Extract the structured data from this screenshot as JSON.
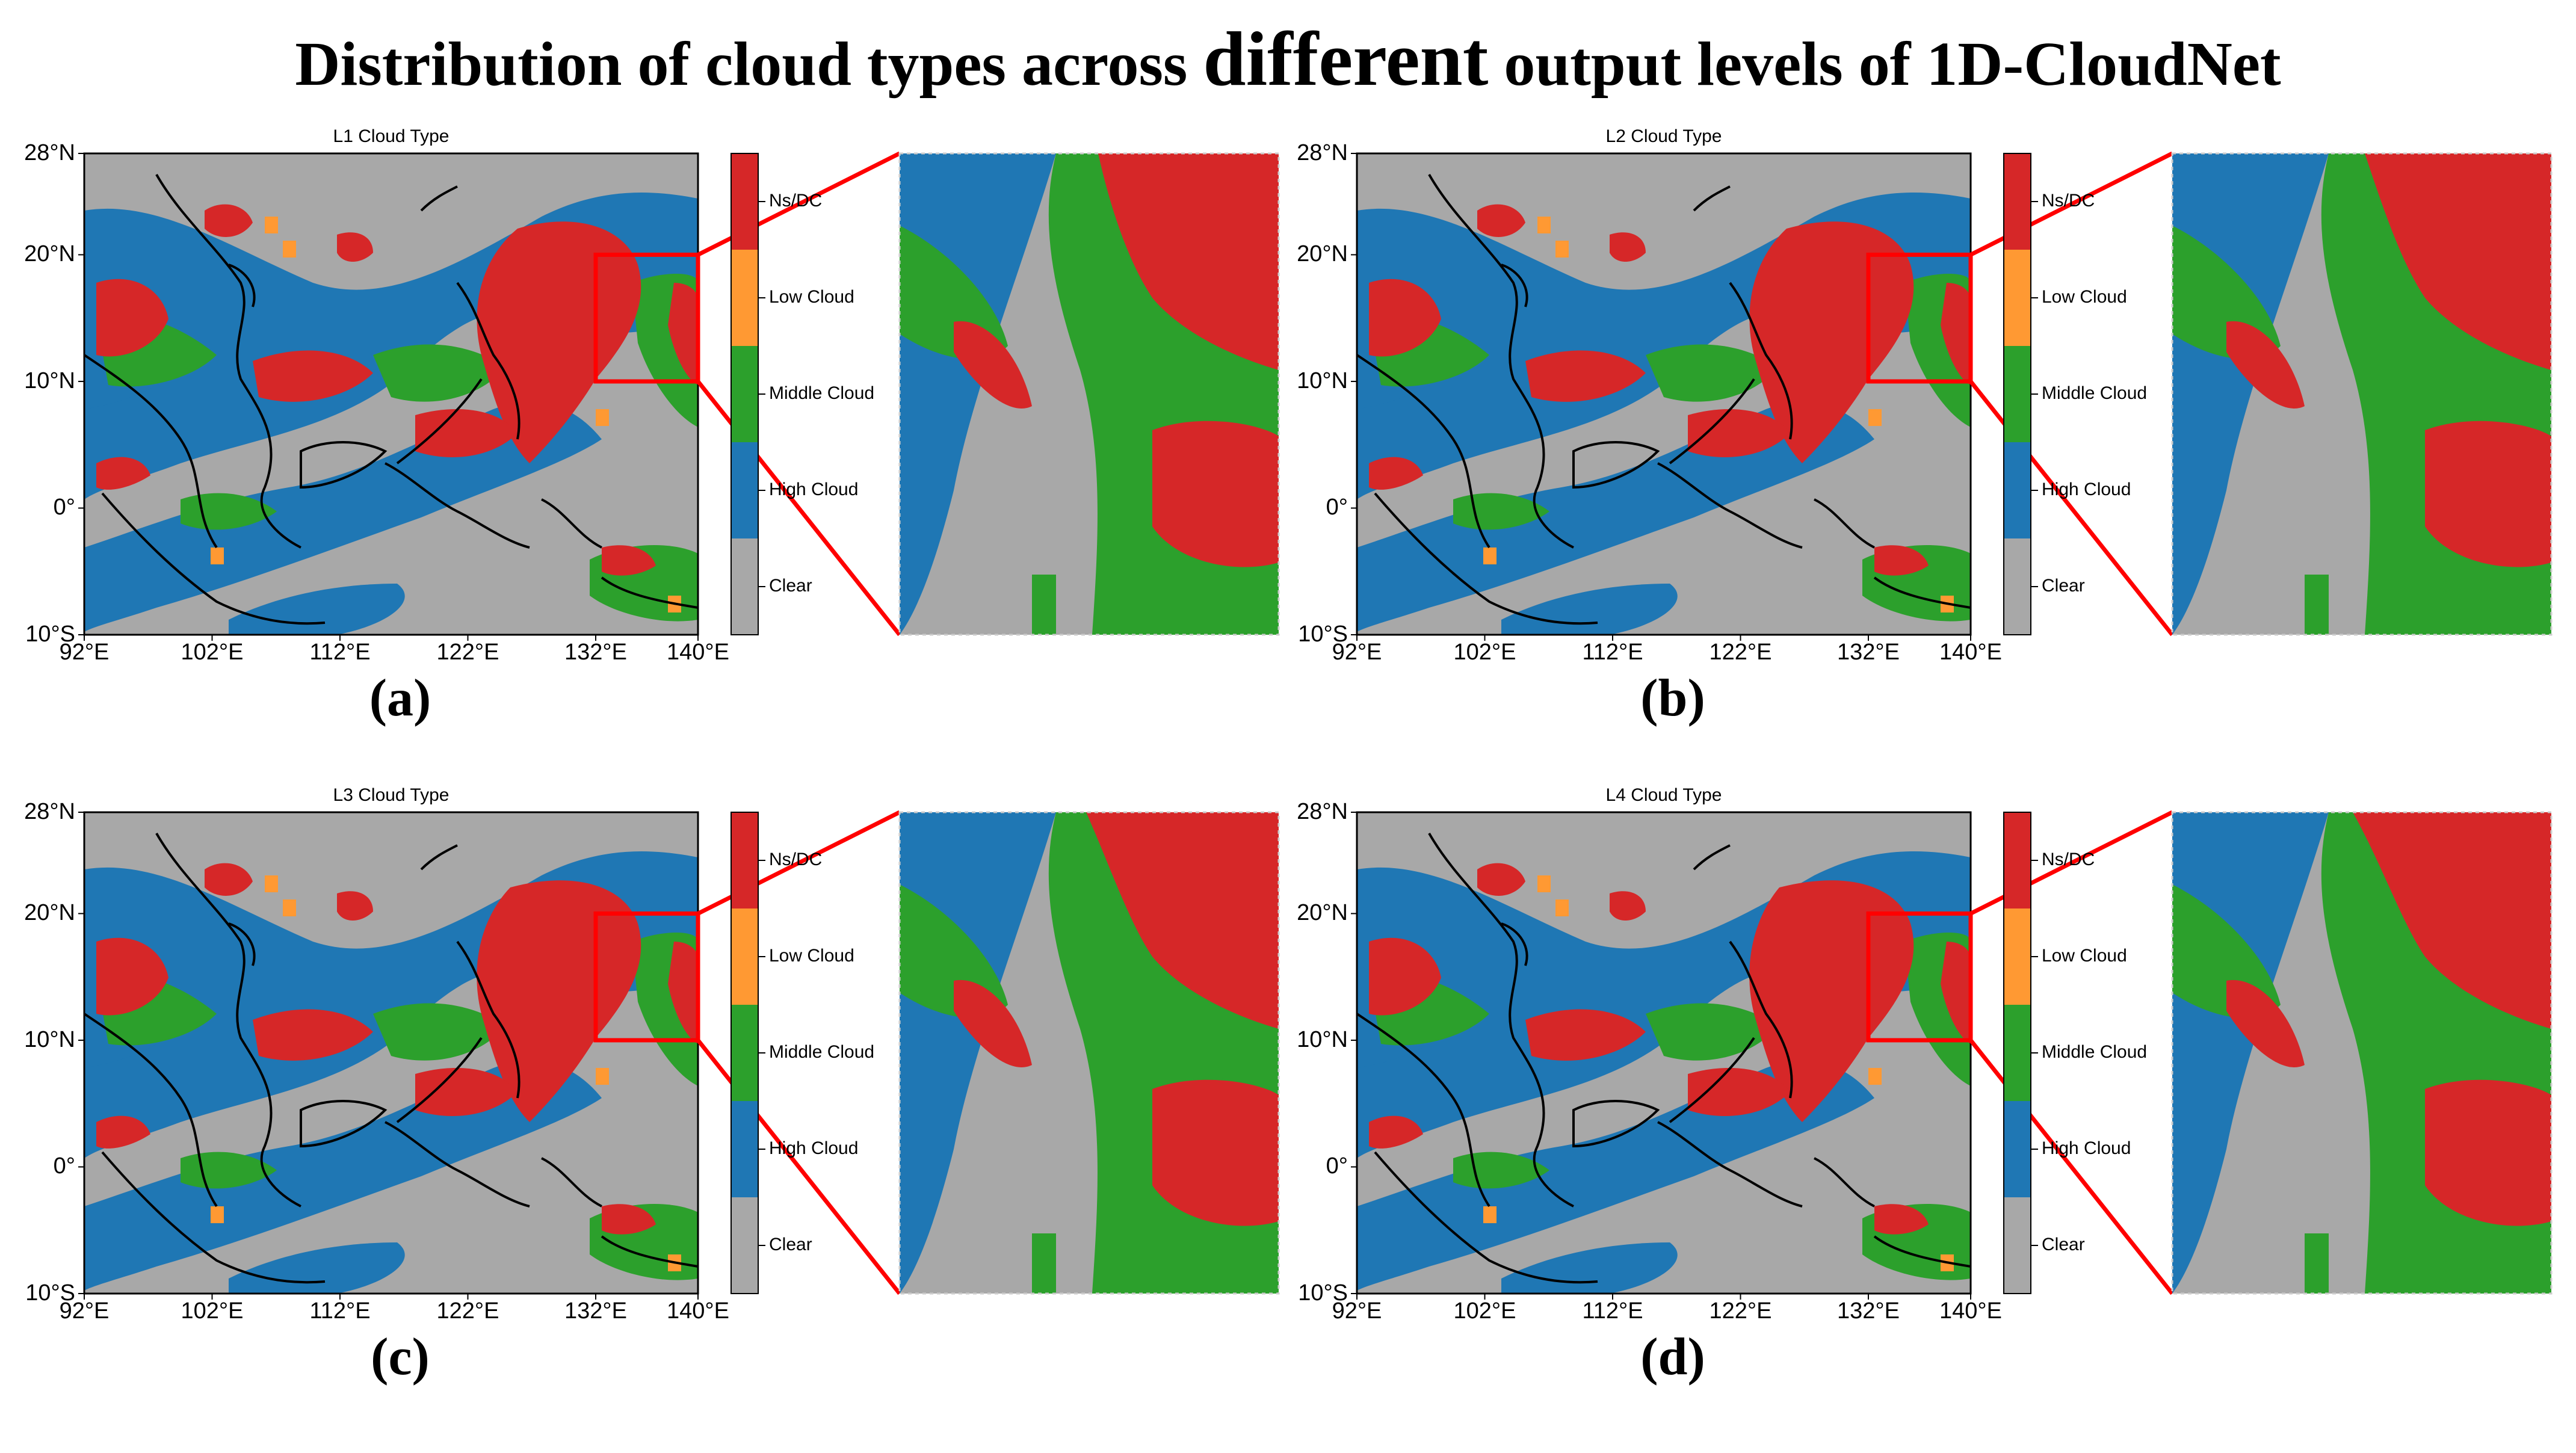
{
  "title_part1": "Distribution of cloud types across ",
  "title_part2": "different",
  "title_part3": " output levels of 1D-CloudNet",
  "lat_ticks": [
    "28°N",
    "20°N",
    "10°N",
    "0°",
    "10°S"
  ],
  "lon_ticks": [
    "92°E",
    "102°E",
    "112°E",
    "122°E",
    "132°E",
    "140°E"
  ],
  "classes": [
    {
      "label": "Ns/DC",
      "color": "#d62728"
    },
    {
      "label": "Low Cloud",
      "color": "#ff9933"
    },
    {
      "label": "Middle Cloud",
      "color": "#2ca02c"
    },
    {
      "label": "High Cloud",
      "color": "#1f77b4"
    },
    {
      "label": "Clear",
      "color": "#a8a8a8"
    }
  ],
  "panels": [
    {
      "name": "L1 Cloud Type",
      "letter": "(a)"
    },
    {
      "name": "L2 Cloud Type",
      "letter": "(b)"
    },
    {
      "name": "L3 Cloud Type",
      "letter": "(c)"
    },
    {
      "name": "L4 Cloud Type",
      "letter": "(d)"
    }
  ]
}
